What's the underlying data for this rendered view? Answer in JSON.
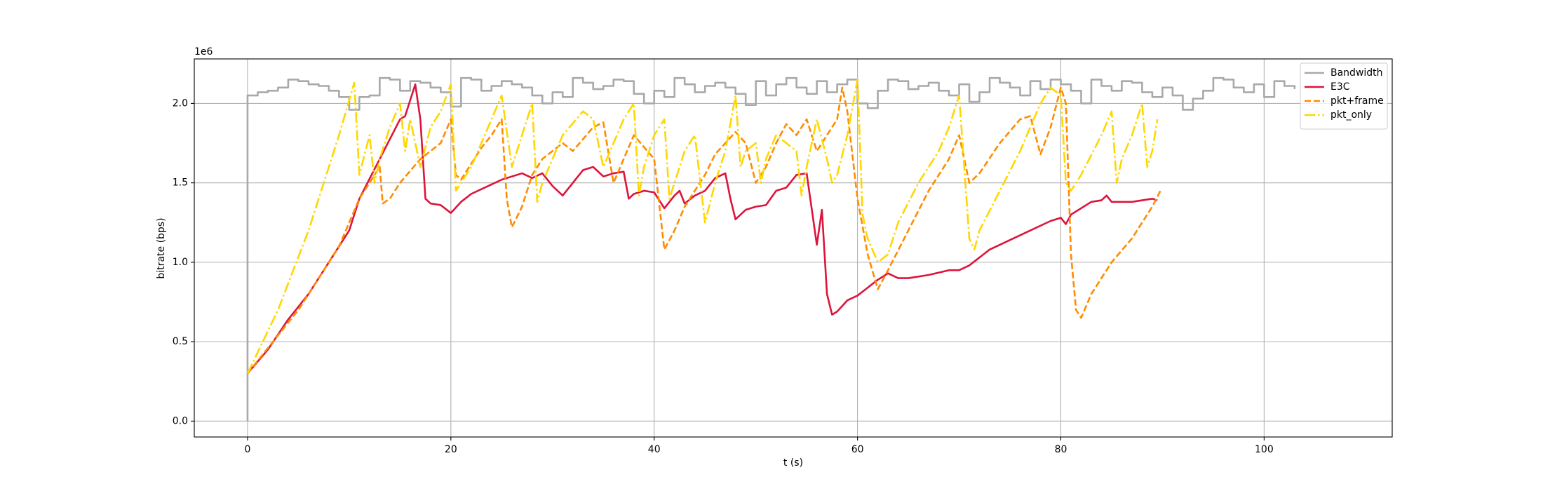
{
  "chart_data": {
    "type": "line",
    "xlabel": "t (s)",
    "ylabel": "bitrate (bps)",
    "y_offset_label": "1e6",
    "xlim": [
      -5.24,
      112.6
    ],
    "ylim": [
      -100000,
      2280000
    ],
    "xticks": [
      0,
      20,
      40,
      60,
      80,
      100
    ],
    "yticks": [
      {
        "value": 0,
        "label": "0.0"
      },
      {
        "value": 500000,
        "label": "0.5"
      },
      {
        "value": 1000000,
        "label": "1.0"
      },
      {
        "value": 1500000,
        "label": "1.5"
      },
      {
        "value": 2000000,
        "label": "2.0"
      }
    ],
    "grid": true,
    "legend": "upper right",
    "series": [
      {
        "name": "Bandwidth",
        "color": "#a9a9a9",
        "style": "steps",
        "x": [
          0,
          0,
          1,
          2,
          3,
          4,
          5,
          6,
          7,
          8,
          9,
          10,
          11,
          12,
          13,
          14,
          15,
          16,
          17,
          18,
          19,
          20,
          21,
          22,
          23,
          24,
          25,
          26,
          27,
          28,
          29,
          30,
          31,
          32,
          33,
          34,
          35,
          36,
          37,
          38,
          39,
          40,
          41,
          42,
          43,
          44,
          45,
          46,
          47,
          48,
          49,
          50,
          51,
          52,
          53,
          54,
          55,
          56,
          57,
          58,
          59,
          60,
          61,
          62,
          63,
          64,
          65,
          66,
          67,
          68,
          69,
          70,
          71,
          72,
          73,
          74,
          75,
          76,
          77,
          78,
          79,
          80,
          81,
          82,
          83,
          84,
          85,
          86,
          87,
          88,
          89,
          90,
          91,
          92,
          93,
          94,
          95,
          96,
          97,
          98,
          99,
          100,
          101,
          102,
          103
        ],
        "values": [
          0,
          2050000,
          2070000,
          2080000,
          2100000,
          2150000,
          2140000,
          2120000,
          2110000,
          2080000,
          2040000,
          1960000,
          2040000,
          2050000,
          2160000,
          2150000,
          2080000,
          2140000,
          2130000,
          2100000,
          2070000,
          1980000,
          2160000,
          2150000,
          2080000,
          2110000,
          2140000,
          2120000,
          2100000,
          2050000,
          2000000,
          2070000,
          2040000,
          2160000,
          2130000,
          2090000,
          2110000,
          2150000,
          2140000,
          2060000,
          2000000,
          2080000,
          2040000,
          2160000,
          2120000,
          2070000,
          2110000,
          2130000,
          2100000,
          2060000,
          1990000,
          2140000,
          2050000,
          2120000,
          2160000,
          2100000,
          2060000,
          2140000,
          2070000,
          2120000,
          2150000,
          2000000,
          1970000,
          2080000,
          2150000,
          2140000,
          2090000,
          2110000,
          2130000,
          2080000,
          2050000,
          2120000,
          2010000,
          2070000,
          2160000,
          2130000,
          2100000,
          2050000,
          2140000,
          2090000,
          2150000,
          2120000,
          2080000,
          2000000,
          2150000,
          2110000,
          2080000,
          2140000,
          2130000,
          2070000,
          2040000,
          2100000,
          2050000,
          1960000,
          2030000,
          2080000,
          2160000,
          2150000,
          2100000,
          2070000,
          2120000,
          2040000,
          2140000,
          2110000,
          2090000
        ]
      },
      {
        "name": "E3C",
        "color": "#dc143c",
        "style": "solid",
        "x": [
          0,
          2,
          4,
          6,
          8,
          10,
          11,
          13,
          15,
          15.5,
          16.5,
          17,
          17.5,
          18,
          19,
          20,
          21,
          22,
          24,
          25,
          27,
          28,
          29,
          30,
          31,
          32,
          33,
          34,
          35,
          36,
          37,
          37.5,
          38,
          39,
          40,
          41,
          42,
          42.5,
          43,
          44,
          45,
          46,
          47,
          47.5,
          48,
          49,
          50,
          51,
          52,
          53,
          54,
          55,
          56,
          56.5,
          57,
          57.5,
          58,
          59,
          60,
          61,
          62,
          63,
          64,
          65,
          67,
          69,
          70,
          71,
          73,
          75,
          77,
          79,
          80,
          80.5,
          81,
          82,
          83,
          84,
          84.5,
          85,
          87,
          88,
          89,
          89.5
        ],
        "values": [
          300000,
          450000,
          640000,
          800000,
          1000000,
          1200000,
          1400000,
          1650000,
          1900000,
          1920000,
          2120000,
          1900000,
          1400000,
          1370000,
          1360000,
          1310000,
          1380000,
          1430000,
          1490000,
          1520000,
          1560000,
          1530000,
          1560000,
          1480000,
          1420000,
          1500000,
          1580000,
          1600000,
          1540000,
          1560000,
          1570000,
          1400000,
          1430000,
          1450000,
          1440000,
          1340000,
          1420000,
          1450000,
          1370000,
          1420000,
          1450000,
          1530000,
          1560000,
          1400000,
          1270000,
          1330000,
          1350000,
          1360000,
          1450000,
          1470000,
          1550000,
          1560000,
          1110000,
          1330000,
          800000,
          670000,
          690000,
          760000,
          790000,
          840000,
          890000,
          930000,
          900000,
          900000,
          920000,
          950000,
          950000,
          980000,
          1080000,
          1140000,
          1200000,
          1260000,
          1280000,
          1240000,
          1300000,
          1340000,
          1380000,
          1390000,
          1420000,
          1380000,
          1380000,
          1390000,
          1400000,
          1390000
        ]
      },
      {
        "name": "pkt+frame",
        "color": "#ff8c00",
        "style": "dashed",
        "x": [
          0,
          5,
          9,
          11,
          12,
          13,
          13.3,
          14,
          15,
          17,
          19,
          20,
          20.5,
          21,
          23,
          24,
          25,
          25.5,
          26,
          27,
          28,
          29,
          31,
          32,
          34,
          35,
          36,
          37,
          38,
          40,
          41,
          42,
          43,
          45,
          46,
          47,
          48,
          49,
          50,
          51,
          52,
          53,
          54,
          55,
          56,
          57,
          58,
          58.5,
          59,
          60,
          61,
          62,
          63,
          65,
          67,
          69,
          70,
          71,
          72,
          74,
          76,
          77,
          78,
          79,
          80,
          80.5,
          81,
          81.5,
          82,
          83,
          85,
          87,
          89,
          89.8
        ],
        "values": [
          300000,
          700000,
          1100000,
          1400000,
          1500000,
          1600000,
          1370000,
          1400000,
          1500000,
          1650000,
          1750000,
          1900000,
          1550000,
          1520000,
          1720000,
          1800000,
          1900000,
          1400000,
          1220000,
          1350000,
          1550000,
          1650000,
          1750000,
          1700000,
          1850000,
          1880000,
          1500000,
          1650000,
          1800000,
          1650000,
          1080000,
          1200000,
          1350000,
          1550000,
          1680000,
          1750000,
          1820000,
          1750000,
          1500000,
          1600000,
          1750000,
          1870000,
          1800000,
          1900000,
          1700000,
          1800000,
          1900000,
          2100000,
          1950000,
          1400000,
          1050000,
          830000,
          950000,
          1200000,
          1450000,
          1650000,
          1800000,
          1500000,
          1560000,
          1750000,
          1900000,
          1920000,
          1680000,
          1850000,
          2100000,
          2000000,
          1050000,
          700000,
          650000,
          800000,
          1000000,
          1150000,
          1350000,
          1450000
        ]
      },
      {
        "name": "pkt_only",
        "color": "#ffd700",
        "style": "dashdot",
        "x": [
          0,
          3,
          6,
          9,
          10.5,
          11,
          12,
          12.5,
          13,
          14,
          15,
          15.5,
          16,
          17,
          18,
          19,
          20,
          20.5,
          22,
          24,
          25,
          26,
          27,
          28,
          28.5,
          29,
          31,
          33,
          34,
          35,
          37,
          38,
          38.5,
          39,
          40,
          41,
          41.5,
          42,
          43,
          44,
          45,
          46,
          47,
          48,
          48.5,
          49,
          50,
          50.5,
          51,
          52,
          53,
          54,
          54.5,
          55,
          56,
          57,
          57.5,
          58,
          59,
          60,
          60.5,
          61,
          62,
          63,
          64,
          66,
          68,
          69,
          70,
          71,
          71.5,
          72,
          74,
          76,
          77,
          78,
          79,
          80,
          80.5,
          81,
          82,
          84,
          85,
          85.5,
          86,
          87,
          88,
          88.5,
          89,
          89.5
        ],
        "values": [
          300000,
          700000,
          1200000,
          1800000,
          2130000,
          1550000,
          1800000,
          1500000,
          1650000,
          1850000,
          2000000,
          1700000,
          1900000,
          1600000,
          1850000,
          1950000,
          2120000,
          1450000,
          1600000,
          1900000,
          2050000,
          1600000,
          1800000,
          2000000,
          1380000,
          1500000,
          1800000,
          1950000,
          1900000,
          1600000,
          1900000,
          2000000,
          1420000,
          1600000,
          1800000,
          1900000,
          1400000,
          1500000,
          1700000,
          1800000,
          1250000,
          1500000,
          1700000,
          2050000,
          1600000,
          1700000,
          1750000,
          1500000,
          1650000,
          1800000,
          1750000,
          1700000,
          1420000,
          1600000,
          1900000,
          1650000,
          1500000,
          1550000,
          1800000,
          2150000,
          1300000,
          1150000,
          1000000,
          1050000,
          1250000,
          1500000,
          1700000,
          1850000,
          2050000,
          1150000,
          1080000,
          1200000,
          1450000,
          1700000,
          1850000,
          2000000,
          2100000,
          2050000,
          1500000,
          1450000,
          1550000,
          1800000,
          1950000,
          1500000,
          1650000,
          1800000,
          2000000,
          1600000,
          1700000,
          1900000
        ]
      }
    ]
  }
}
